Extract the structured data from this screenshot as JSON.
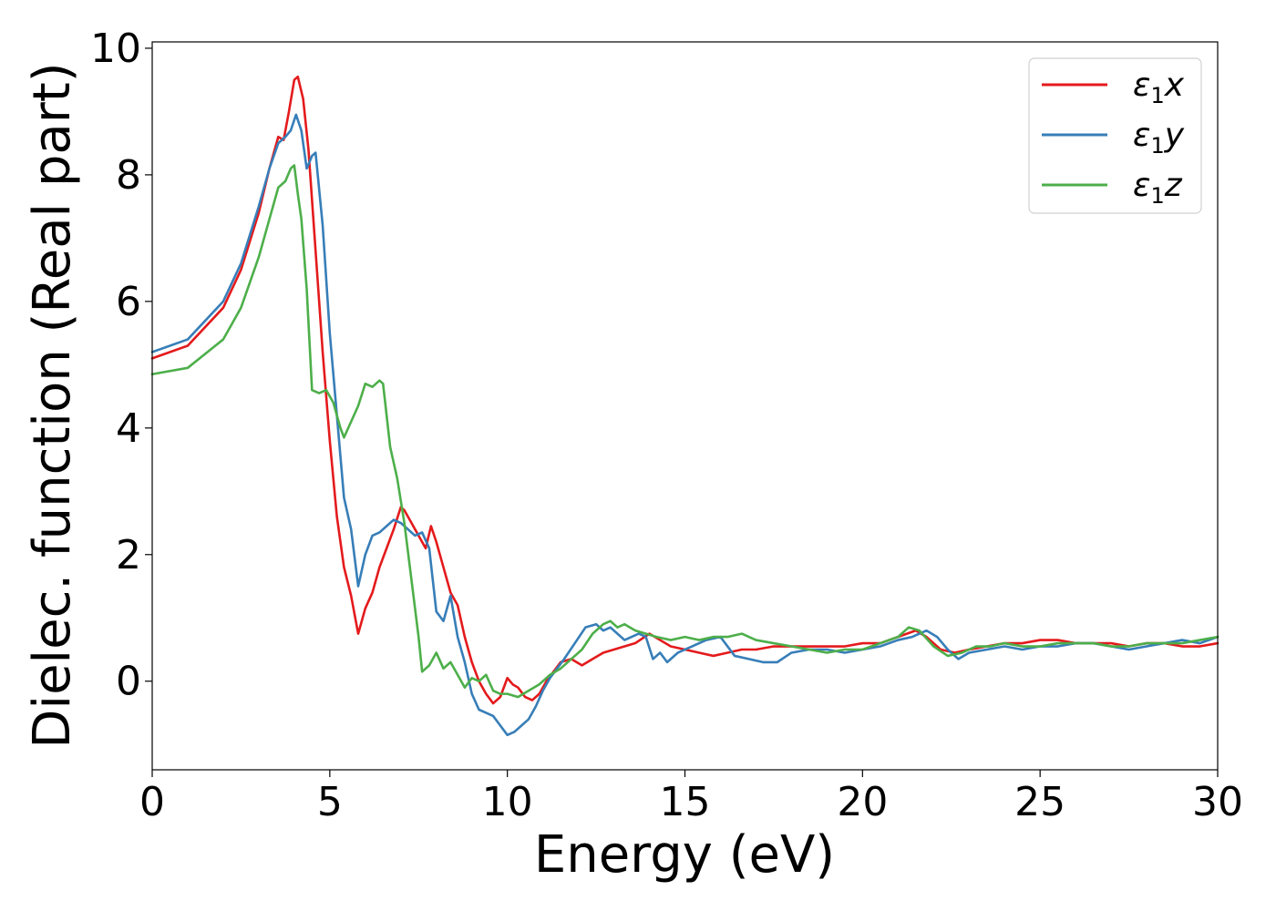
{
  "chart_data": {
    "type": "line",
    "title": "",
    "xlabel": "Energy (eV)",
    "ylabel": "Dielec. function (Real part)",
    "xlim": [
      0,
      30
    ],
    "ylim": [
      -1.4,
      10.1
    ],
    "xticks": [
      0,
      5,
      10,
      15,
      20,
      25,
      30
    ],
    "xtick_labels": [
      "0",
      "5",
      "10",
      "15",
      "20",
      "25",
      "30"
    ],
    "yticks": [
      0,
      2,
      4,
      6,
      8,
      10
    ],
    "ytick_labels": [
      "0",
      "2",
      "4",
      "6",
      "8",
      "10"
    ],
    "grid": false,
    "legend_position": "top-right",
    "series": [
      {
        "name": "ε1x",
        "legend_symbol": "ε",
        "legend_subscript": "1",
        "legend_suffix": "x",
        "color": "#e41a1c",
        "x": [
          0,
          1,
          2,
          2.5,
          3,
          3.3,
          3.55,
          3.7,
          3.85,
          4.0,
          4.1,
          4.25,
          4.4,
          4.6,
          4.8,
          5.0,
          5.2,
          5.4,
          5.6,
          5.8,
          6.0,
          6.2,
          6.4,
          6.6,
          6.8,
          7.0,
          7.1,
          7.3,
          7.5,
          7.7,
          7.85,
          8.0,
          8.2,
          8.4,
          8.6,
          8.8,
          9.0,
          9.2,
          9.4,
          9.6,
          9.8,
          10.0,
          10.15,
          10.3,
          10.5,
          10.7,
          10.9,
          11.1,
          11.3,
          11.5,
          11.8,
          12.1,
          12.4,
          12.7,
          13.0,
          13.3,
          13.6,
          14.0,
          14.3,
          14.6,
          15.0,
          15.4,
          15.8,
          16.2,
          16.6,
          17.0,
          17.5,
          18.0,
          18.5,
          19.0,
          19.5,
          20.0,
          20.5,
          21.0,
          21.5,
          21.8,
          22.2,
          22.6,
          23.0,
          23.5,
          24.0,
          24.5,
          25.0,
          25.5,
          26.0,
          26.5,
          27.0,
          27.5,
          28.0,
          28.5,
          29.0,
          29.5,
          30.0
        ],
        "y": [
          5.1,
          5.3,
          5.9,
          6.5,
          7.4,
          8.1,
          8.6,
          8.55,
          9.0,
          9.5,
          9.55,
          9.2,
          8.4,
          6.8,
          5.2,
          3.8,
          2.6,
          1.8,
          1.35,
          0.75,
          1.15,
          1.4,
          1.8,
          2.1,
          2.4,
          2.75,
          2.7,
          2.5,
          2.3,
          2.1,
          2.45,
          2.2,
          1.8,
          1.4,
          1.2,
          0.7,
          0.3,
          0.0,
          -0.2,
          -0.35,
          -0.25,
          0.05,
          -0.05,
          -0.1,
          -0.25,
          -0.3,
          -0.2,
          0.0,
          0.15,
          0.3,
          0.35,
          0.25,
          0.35,
          0.45,
          0.5,
          0.55,
          0.6,
          0.75,
          0.65,
          0.55,
          0.5,
          0.45,
          0.4,
          0.45,
          0.5,
          0.5,
          0.55,
          0.55,
          0.55,
          0.55,
          0.55,
          0.6,
          0.6,
          0.7,
          0.8,
          0.7,
          0.5,
          0.45,
          0.5,
          0.55,
          0.6,
          0.6,
          0.65,
          0.65,
          0.6,
          0.6,
          0.6,
          0.55,
          0.6,
          0.6,
          0.55,
          0.55,
          0.6
        ]
      },
      {
        "name": "ε1y",
        "legend_symbol": "ε",
        "legend_subscript": "1",
        "legend_suffix": "y",
        "color": "#377eb8",
        "x": [
          0,
          1,
          2,
          2.5,
          3,
          3.3,
          3.55,
          3.75,
          3.9,
          4.05,
          4.2,
          4.35,
          4.5,
          4.6,
          4.8,
          5.0,
          5.2,
          5.4,
          5.6,
          5.8,
          6.0,
          6.2,
          6.4,
          6.6,
          6.8,
          7.0,
          7.2,
          7.4,
          7.6,
          7.8,
          8.0,
          8.2,
          8.4,
          8.6,
          8.8,
          9.0,
          9.2,
          9.4,
          9.6,
          9.8,
          10.0,
          10.2,
          10.4,
          10.6,
          10.8,
          11.0,
          11.2,
          11.4,
          11.6,
          11.9,
          12.2,
          12.5,
          12.7,
          12.9,
          13.1,
          13.3,
          13.5,
          13.7,
          13.9,
          14.1,
          14.3,
          14.5,
          14.8,
          15.2,
          15.6,
          16.0,
          16.4,
          16.8,
          17.2,
          17.6,
          18.0,
          18.5,
          19.0,
          19.5,
          20.0,
          20.5,
          21.0,
          21.4,
          21.8,
          22.1,
          22.4,
          22.7,
          23.0,
          23.5,
          24.0,
          24.5,
          25.0,
          25.5,
          26.0,
          26.5,
          27.0,
          27.5,
          28.0,
          28.5,
          29.0,
          29.5,
          30.0
        ],
        "y": [
          5.2,
          5.4,
          6.0,
          6.6,
          7.5,
          8.1,
          8.5,
          8.6,
          8.7,
          8.95,
          8.7,
          8.1,
          8.3,
          8.35,
          7.2,
          5.5,
          4.2,
          2.9,
          2.4,
          1.5,
          2.0,
          2.3,
          2.35,
          2.45,
          2.55,
          2.5,
          2.4,
          2.3,
          2.35,
          2.1,
          1.1,
          0.95,
          1.35,
          0.7,
          0.3,
          -0.2,
          -0.45,
          -0.5,
          -0.55,
          -0.7,
          -0.85,
          -0.8,
          -0.7,
          -0.6,
          -0.4,
          -0.15,
          0.05,
          0.2,
          0.35,
          0.6,
          0.85,
          0.9,
          0.8,
          0.85,
          0.75,
          0.65,
          0.7,
          0.75,
          0.7,
          0.35,
          0.45,
          0.3,
          0.45,
          0.55,
          0.65,
          0.7,
          0.4,
          0.35,
          0.3,
          0.3,
          0.45,
          0.5,
          0.5,
          0.45,
          0.5,
          0.55,
          0.65,
          0.7,
          0.8,
          0.7,
          0.5,
          0.35,
          0.45,
          0.5,
          0.55,
          0.5,
          0.55,
          0.55,
          0.6,
          0.6,
          0.55,
          0.5,
          0.55,
          0.6,
          0.65,
          0.6,
          0.7
        ]
      },
      {
        "name": "ε1z",
        "legend_symbol": "ε",
        "legend_subscript": "1",
        "legend_suffix": "z",
        "color": "#4daf4a",
        "x": [
          0,
          1,
          2,
          2.5,
          3,
          3.3,
          3.55,
          3.75,
          3.9,
          4.0,
          4.1,
          4.2,
          4.35,
          4.5,
          4.7,
          4.9,
          5.1,
          5.3,
          5.4,
          5.6,
          5.8,
          6.0,
          6.2,
          6.4,
          6.5,
          6.7,
          6.9,
          7.1,
          7.3,
          7.5,
          7.6,
          7.8,
          8.0,
          8.2,
          8.4,
          8.6,
          8.8,
          9.0,
          9.2,
          9.4,
          9.6,
          9.8,
          10.0,
          10.3,
          10.6,
          10.9,
          11.2,
          11.5,
          11.8,
          12.1,
          12.4,
          12.7,
          12.9,
          13.1,
          13.3,
          13.6,
          13.9,
          14.2,
          14.6,
          15.0,
          15.4,
          15.8,
          16.2,
          16.6,
          17.0,
          17.5,
          18.0,
          18.5,
          19.0,
          19.5,
          20.0,
          20.5,
          21.0,
          21.3,
          21.6,
          22.0,
          22.4,
          22.8,
          23.2,
          23.6,
          24.0,
          24.5,
          25.0,
          25.5,
          26.0,
          26.5,
          27.0,
          27.5,
          28.0,
          28.5,
          29.0,
          29.5,
          30.0
        ],
        "y": [
          4.85,
          4.95,
          5.4,
          5.9,
          6.7,
          7.3,
          7.8,
          7.9,
          8.1,
          8.15,
          7.7,
          7.3,
          6.2,
          4.6,
          4.55,
          4.6,
          4.4,
          4.0,
          3.85,
          4.1,
          4.35,
          4.7,
          4.65,
          4.75,
          4.7,
          3.7,
          3.2,
          2.5,
          1.6,
          0.7,
          0.15,
          0.25,
          0.45,
          0.2,
          0.3,
          0.1,
          -0.1,
          0.05,
          0.0,
          0.1,
          -0.15,
          -0.2,
          -0.2,
          -0.25,
          -0.15,
          -0.05,
          0.1,
          0.2,
          0.35,
          0.5,
          0.75,
          0.9,
          0.95,
          0.85,
          0.9,
          0.8,
          0.75,
          0.7,
          0.65,
          0.7,
          0.65,
          0.7,
          0.7,
          0.75,
          0.65,
          0.6,
          0.55,
          0.5,
          0.45,
          0.5,
          0.5,
          0.6,
          0.7,
          0.85,
          0.8,
          0.55,
          0.4,
          0.45,
          0.55,
          0.55,
          0.6,
          0.55,
          0.55,
          0.6,
          0.6,
          0.6,
          0.55,
          0.55,
          0.6,
          0.6,
          0.6,
          0.65,
          0.7
        ]
      }
    ]
  }
}
